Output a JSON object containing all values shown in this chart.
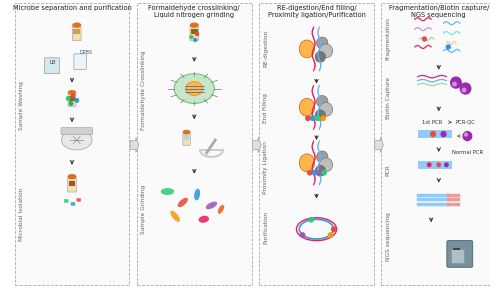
{
  "panel_titles": [
    "Microbe separation and purification",
    "Formaldehyde crosslinking/\nLiquid nitrogen grinding",
    "RE-digestion/End filling/\nProximity ligation/Purification",
    "Fragmentation/Biotin capture/\nNGS sequencing"
  ],
  "background": "#ffffff",
  "dashed_box_color": "#aaaaaa",
  "rotated_label_color": "#666666",
  "label_fontsize": 4.2,
  "panel_title_fontsize": 4.8
}
